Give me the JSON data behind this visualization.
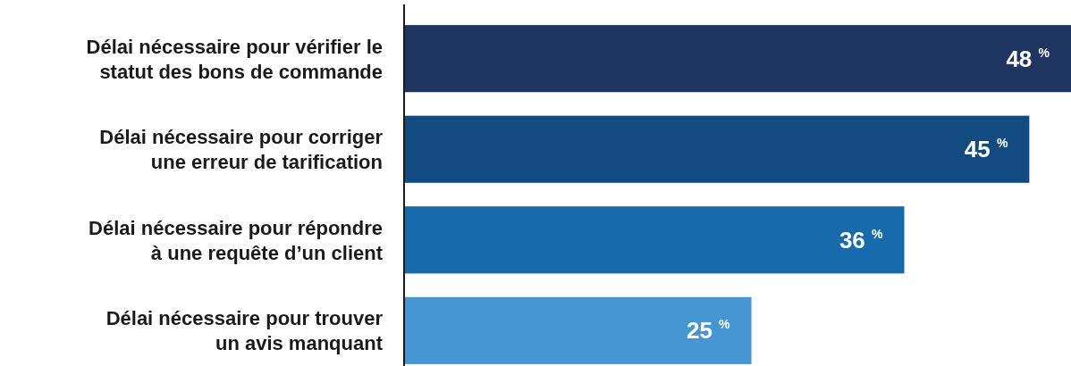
{
  "chart_data": {
    "type": "bar",
    "orientation": "horizontal",
    "categories": [
      "Délai nécessaire pour vérifier le\nstatut des bons de commande",
      "Délai nécessaire pour corriger\nune erreur de tarification",
      "Délai nécessaire pour répondre\nà une requête d’un client",
      "Délai nécessaire pour trouver\nun avis manquant"
    ],
    "values": [
      48,
      45,
      36,
      25
    ],
    "colors": [
      "#1f3461",
      "#114b82",
      "#176aab",
      "#4596d3"
    ],
    "xlim": [
      0,
      48
    ],
    "value_labels": [
      "48 $^{%}$",
      "45 $^{%}$",
      "36 $^{%}$",
      "25 $^{%}$"
    ]
  }
}
